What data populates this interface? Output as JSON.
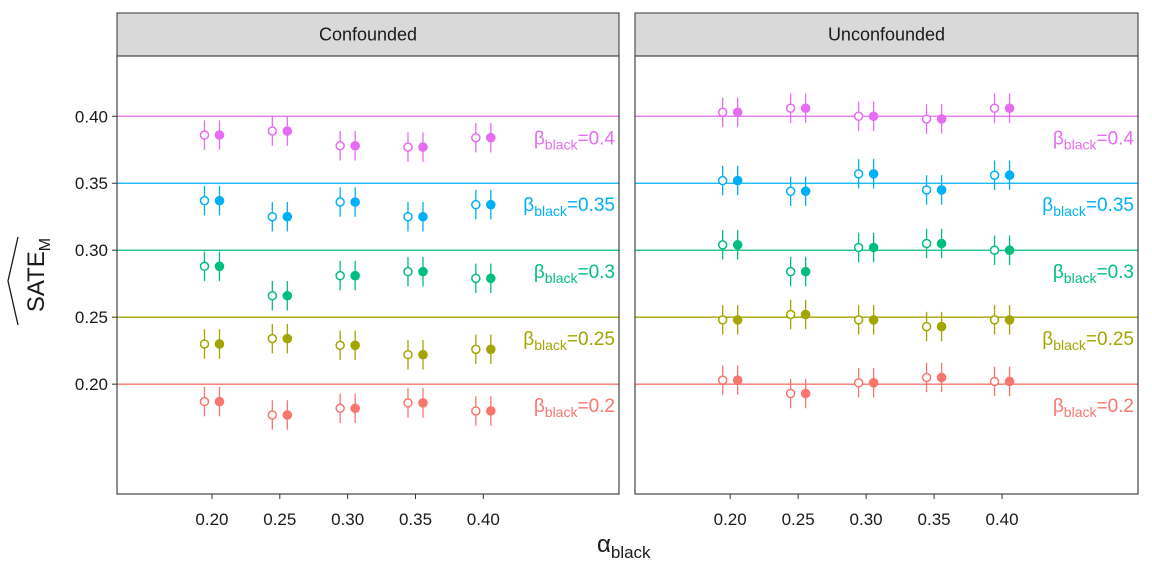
{
  "chart_data": {
    "type": "scatter",
    "ylabel_main": "SATE",
    "ylabel_sub": "M",
    "xlabel_main": "α",
    "xlabel_sub": "black",
    "x_ticks": [
      "0.20",
      "0.25",
      "0.30",
      "0.35",
      "0.40"
    ],
    "x_values": [
      0.2,
      0.25,
      0.3,
      0.35,
      0.4
    ],
    "y_ticks": [
      "0.20",
      "0.25",
      "0.30",
      "0.35",
      "0.40"
    ],
    "y_values": [
      0.2,
      0.25,
      0.3,
      0.35,
      0.4
    ],
    "xlim": [
      0.13,
      0.5
    ],
    "ylim": [
      0.118,
      0.445
    ],
    "beta_prefix": "β",
    "beta_sub": "black",
    "beta_eq": "=",
    "legend": "none",
    "grid": "off",
    "panels": [
      {
        "title": "Confounded",
        "series": [
          {
            "beta": "0.4",
            "color": "#E76BF3",
            "true_value": 0.4,
            "open": [
              0.386,
              0.389,
              0.378,
              0.377,
              0.384
            ],
            "filled": [
              0.386,
              0.389,
              0.378,
              0.377,
              0.384
            ],
            "err": 0.011
          },
          {
            "beta": "0.35",
            "color": "#00B0F6",
            "true_value": 0.35,
            "open": [
              0.337,
              0.325,
              0.336,
              0.325,
              0.334
            ],
            "filled": [
              0.337,
              0.325,
              0.336,
              0.325,
              0.334
            ],
            "err": 0.011
          },
          {
            "beta": "0.3",
            "color": "#00BF7D",
            "true_value": 0.3,
            "open": [
              0.288,
              0.266,
              0.281,
              0.284,
              0.279
            ],
            "filled": [
              0.288,
              0.266,
              0.281,
              0.284,
              0.279
            ],
            "err": 0.011
          },
          {
            "beta": "0.25",
            "color": "#A3A500",
            "true_value": 0.25,
            "open": [
              0.23,
              0.234,
              0.229,
              0.222,
              0.226
            ],
            "filled": [
              0.23,
              0.234,
              0.229,
              0.222,
              0.226
            ],
            "err": 0.011
          },
          {
            "beta": "0.2",
            "color": "#F8766D",
            "true_value": 0.2,
            "open": [
              0.187,
              0.177,
              0.182,
              0.186,
              0.18
            ],
            "filled": [
              0.187,
              0.177,
              0.182,
              0.186,
              0.18
            ],
            "err": 0.011
          }
        ]
      },
      {
        "title": "Unconfounded",
        "series": [
          {
            "beta": "0.4",
            "color": "#E76BF3",
            "true_value": 0.4,
            "open": [
              0.403,
              0.406,
              0.4,
              0.398,
              0.406
            ],
            "filled": [
              0.403,
              0.406,
              0.4,
              0.398,
              0.406
            ],
            "err": 0.011
          },
          {
            "beta": "0.35",
            "color": "#00B0F6",
            "true_value": 0.35,
            "open": [
              0.352,
              0.344,
              0.357,
              0.345,
              0.356
            ],
            "filled": [
              0.352,
              0.344,
              0.357,
              0.345,
              0.356
            ],
            "err": 0.011
          },
          {
            "beta": "0.3",
            "color": "#00BF7D",
            "true_value": 0.3,
            "open": [
              0.304,
              0.284,
              0.302,
              0.305,
              0.3
            ],
            "filled": [
              0.304,
              0.284,
              0.302,
              0.305,
              0.3
            ],
            "err": 0.011
          },
          {
            "beta": "0.25",
            "color": "#A3A500",
            "true_value": 0.25,
            "open": [
              0.248,
              0.252,
              0.248,
              0.243,
              0.248
            ],
            "filled": [
              0.248,
              0.252,
              0.248,
              0.243,
              0.248
            ],
            "err": 0.011
          },
          {
            "beta": "0.2",
            "color": "#F8766D",
            "true_value": 0.2,
            "open": [
              0.203,
              0.193,
              0.201,
              0.205,
              0.202
            ],
            "filled": [
              0.203,
              0.193,
              0.201,
              0.205,
              0.202
            ],
            "err": 0.011
          }
        ]
      }
    ]
  },
  "colors": {
    "strip_bg": "#D9D9D9",
    "frame": "#333333",
    "axis_text": "#1A1A1A"
  }
}
